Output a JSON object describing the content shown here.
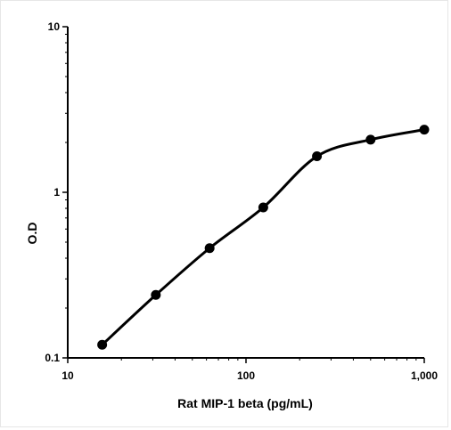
{
  "chart_data": {
    "type": "line",
    "title": "",
    "xlabel": "Rat MIP-1 beta (pg/mL)",
    "ylabel": "O.D",
    "x_scale": "log",
    "y_scale": "log",
    "xlim": [
      10,
      1000
    ],
    "ylim": [
      0.1,
      10
    ],
    "x_ticks": [
      {
        "value": 10,
        "label": "10"
      },
      {
        "value": 100,
        "label": "100"
      },
      {
        "value": 1000,
        "label": "1,000"
      }
    ],
    "y_ticks": [
      {
        "value": 0.1,
        "label": "0.1"
      },
      {
        "value": 1,
        "label": "1"
      },
      {
        "value": 10,
        "label": "10"
      }
    ],
    "grid": false,
    "legend": "none",
    "series": [
      {
        "x": [
          15.6,
          31.2,
          62.5,
          125,
          250,
          500,
          1000
        ],
        "y": [
          0.12,
          0.24,
          0.46,
          0.81,
          1.65,
          2.08,
          2.39
        ],
        "color": "#000000",
        "marker": "circle",
        "smooth": true
      }
    ]
  }
}
